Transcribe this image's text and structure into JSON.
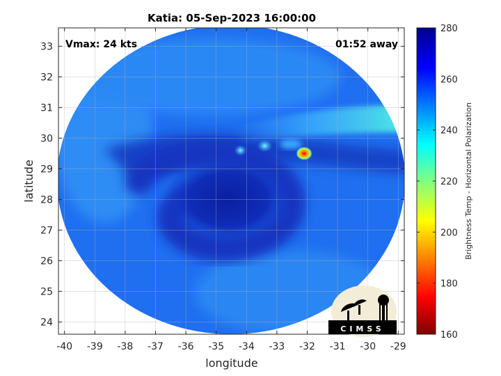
{
  "title": "Katia: 05-Sep-2023 16:00:00",
  "annotations": {
    "vmax": "Vmax: 24 kts",
    "time_away": "01:52 away"
  },
  "axes": {
    "xlabel": "longitude",
    "ylabel": "latitude",
    "xlim": [
      -40.2,
      -28.8
    ],
    "ylim": [
      23.6,
      33.6
    ],
    "xticks": [
      -40,
      -39,
      -38,
      -37,
      -36,
      -35,
      -34,
      -33,
      -32,
      -31,
      -30,
      -29
    ],
    "yticks": [
      24,
      25,
      26,
      27,
      28,
      29,
      30,
      31,
      32,
      33
    ],
    "grid": true
  },
  "colorbar": {
    "label": "Brightness Temp - Horizontal Polarization",
    "min": 160,
    "max": 280,
    "ticks": [
      160,
      180,
      200,
      220,
      240,
      260,
      280
    ],
    "colormap": "jet",
    "colors": [
      "#800000",
      "#ff0000",
      "#ffff00",
      "#00ffff",
      "#0000ff",
      "#00008f"
    ]
  },
  "swath": {
    "center_lon": -34.5,
    "center_lat": 28.6,
    "background_temp": 253,
    "features": [
      {
        "kind": "spiral core",
        "lon": -34.6,
        "lat": 28.0,
        "temp": 268
      },
      {
        "kind": "warm band",
        "lon": -30.5,
        "lat": 30.8,
        "temp": 238
      },
      {
        "kind": "convective cell",
        "lon": -32.1,
        "lat": 29.5,
        "temp": 180
      },
      {
        "kind": "cloud cell",
        "lon": -33.4,
        "lat": 29.75,
        "temp": 238
      },
      {
        "kind": "cloud cell",
        "lon": -34.2,
        "lat": 29.6,
        "temp": 245
      }
    ]
  },
  "logo": {
    "text": "CIMSS"
  }
}
